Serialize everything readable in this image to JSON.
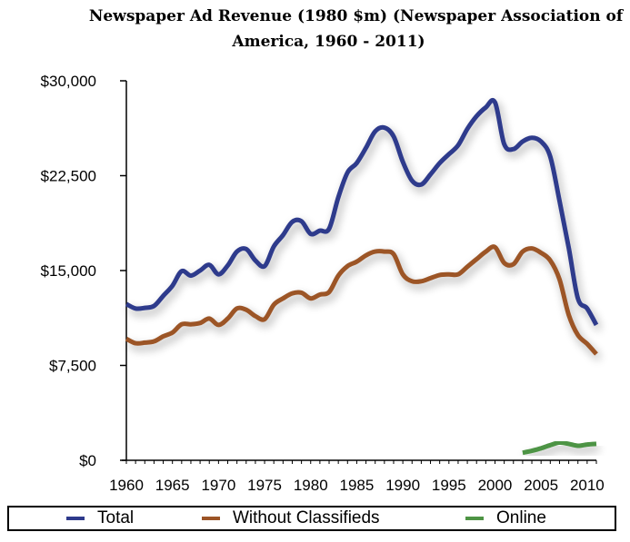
{
  "chart_data": {
    "type": "line",
    "title": "Newspaper Ad Revenue (1980 $m) (Newspaper Association of America, 1960 - 2011)",
    "title_lines": [
      "Newspaper Ad Revenue (1980 $m) (Newspaper Association of",
      "America, 1960 - 2011)"
    ],
    "xlabel": "",
    "ylabel": "",
    "xlim": [
      1960,
      2011
    ],
    "ylim": [
      0,
      30000
    ],
    "x_ticks": [
      1960,
      1965,
      1970,
      1975,
      1980,
      1985,
      1990,
      1995,
      2000,
      2005,
      2010
    ],
    "y_ticks": [
      0,
      7500,
      15000,
      22500,
      30000
    ],
    "y_tick_labels": [
      "$0",
      "$7,500",
      "$15,000",
      "$22,500",
      "$30,000"
    ],
    "grid": false,
    "legend_position": "bottom",
    "series": [
      {
        "name": "Total",
        "color": "#2e3a8c",
        "x": [
          1960,
          1961,
          1962,
          1963,
          1964,
          1965,
          1966,
          1967,
          1968,
          1969,
          1970,
          1971,
          1972,
          1973,
          1974,
          1975,
          1976,
          1977,
          1978,
          1979,
          1980,
          1981,
          1982,
          1983,
          1984,
          1985,
          1986,
          1987,
          1988,
          1989,
          1990,
          1991,
          1992,
          1993,
          1994,
          1995,
          1996,
          1997,
          1998,
          1999,
          2000,
          2001,
          2002,
          2003,
          2004,
          2005,
          2006,
          2007,
          2008,
          2009,
          2010,
          2011
        ],
        "values": [
          12350,
          12000,
          12050,
          12200,
          13000,
          13800,
          14950,
          14600,
          15000,
          15450,
          14700,
          15400,
          16500,
          16700,
          15800,
          15350,
          16900,
          17800,
          18850,
          18900,
          17900,
          18150,
          18300,
          20800,
          22750,
          23500,
          24700,
          26000,
          26300,
          25600,
          23600,
          22100,
          21800,
          22600,
          23500,
          24200,
          24900,
          26200,
          27200,
          27900,
          28300,
          25000,
          24600,
          25200,
          25500,
          25200,
          24000,
          20500,
          16800,
          12800,
          12000,
          10700
        ]
      },
      {
        "name": "Without Classifieds",
        "color": "#9c5426",
        "x": [
          1960,
          1961,
          1962,
          1963,
          1964,
          1965,
          1966,
          1967,
          1968,
          1969,
          1970,
          1971,
          1972,
          1973,
          1974,
          1975,
          1976,
          1977,
          1978,
          1979,
          1980,
          1981,
          1982,
          1983,
          1984,
          1985,
          1986,
          1987,
          1988,
          1989,
          1990,
          1991,
          1992,
          1993,
          1994,
          1995,
          1996,
          1997,
          1998,
          1999,
          2000,
          2001,
          2002,
          2003,
          2004,
          2005,
          2006,
          2007,
          2008,
          2009,
          2010,
          2011
        ],
        "values": [
          9600,
          9250,
          9300,
          9400,
          9800,
          10100,
          10750,
          10750,
          10850,
          11200,
          10700,
          11200,
          12000,
          11900,
          11400,
          11150,
          12300,
          12800,
          13200,
          13250,
          12800,
          13100,
          13300,
          14600,
          15350,
          15700,
          16200,
          16500,
          16500,
          16300,
          14700,
          14150,
          14150,
          14400,
          14650,
          14700,
          14700,
          15300,
          15900,
          16500,
          16850,
          15600,
          15500,
          16500,
          16750,
          16400,
          15800,
          14300,
          11500,
          9900,
          9200,
          8400
        ]
      },
      {
        "name": "Online",
        "color": "#4e9444",
        "x": [
          2003,
          2004,
          2005,
          2006,
          2007,
          2008,
          2009,
          2010,
          2011
        ],
        "values": [
          600,
          750,
          950,
          1200,
          1400,
          1300,
          1150,
          1250,
          1300
        ]
      }
    ]
  }
}
